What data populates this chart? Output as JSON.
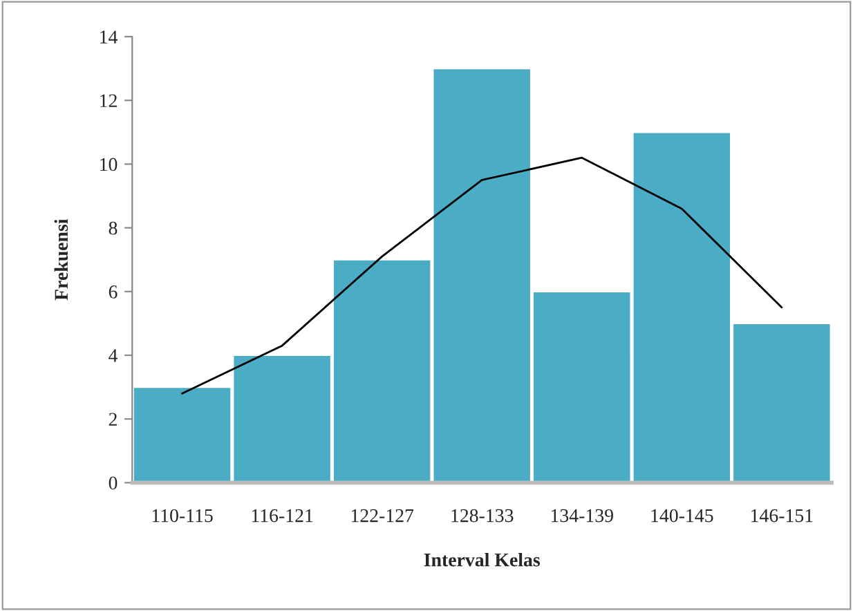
{
  "chart_data": {
    "type": "bar",
    "xlabel": "Interval Kelas",
    "ylabel": "Frekuensi",
    "categories": [
      "110-115",
      "116-121",
      "122-127",
      "128-133",
      "134-139",
      "140-145",
      "146-151"
    ],
    "series": [
      {
        "color": "#4bacc6",
        "values": [
          3,
          4,
          7,
          13,
          6,
          11,
          5
        ]
      },
      {
        "type": "line",
        "color": "#000000",
        "values": [
          2.8,
          4.3,
          7.1,
          9.5,
          10.2,
          8.6,
          5.5
        ]
      }
    ],
    "ylim": [
      0,
      14
    ],
    "yticks": [
      0,
      2,
      4,
      6,
      8,
      10,
      12,
      14
    ],
    "grid": false,
    "legend": false
  }
}
